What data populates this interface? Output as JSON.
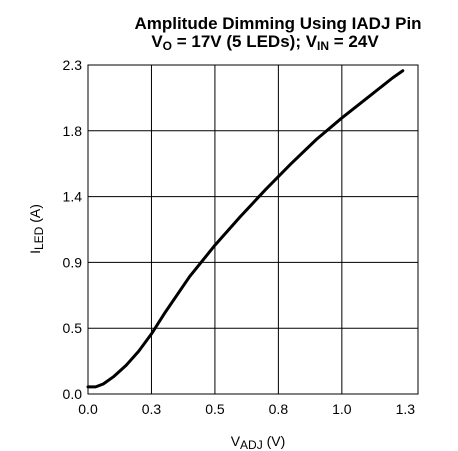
{
  "chart_data": {
    "type": "line",
    "title": {
      "line1": "Amplitude Dimming Using IADJ Pin",
      "line2": {
        "prefix": "V",
        "prefix_sub": "O",
        "middle": " = 17V (5 LEDs); V",
        "middle_sub": "IN",
        "suffix": " = 24V"
      }
    },
    "xlabel": {
      "main": "V",
      "sub": "ADJ",
      "tail": " (V)"
    },
    "ylabel": {
      "main": "I",
      "sub": "LED",
      "tail": " (A)"
    },
    "xlim": [
      0,
      1.3
    ],
    "ylim": [
      0,
      2.3
    ],
    "xticks": [
      0.0,
      0.25,
      0.5,
      0.75,
      1.0,
      1.25
    ],
    "xtick_labels": [
      "0.0",
      "0.3",
      "0.5",
      "0.8",
      "1.0",
      "1.3"
    ],
    "yticks": [
      0.0,
      0.46,
      0.92,
      1.38,
      1.84,
      2.3
    ],
    "ytick_labels": [
      "0.0",
      "0.5",
      "0.9",
      "1.4",
      "1.8",
      "2.3"
    ],
    "grid": true,
    "series": [
      {
        "x": [
          0.0,
          0.03,
          0.06,
          0.1,
          0.15,
          0.2,
          0.25,
          0.3,
          0.4,
          0.5,
          0.6,
          0.7,
          0.8,
          0.9,
          1.0,
          1.1,
          1.2,
          1.24
        ],
        "y": [
          0.05,
          0.05,
          0.07,
          0.12,
          0.2,
          0.3,
          0.42,
          0.56,
          0.82,
          1.04,
          1.24,
          1.43,
          1.61,
          1.78,
          1.93,
          2.07,
          2.21,
          2.26
        ]
      }
    ]
  }
}
